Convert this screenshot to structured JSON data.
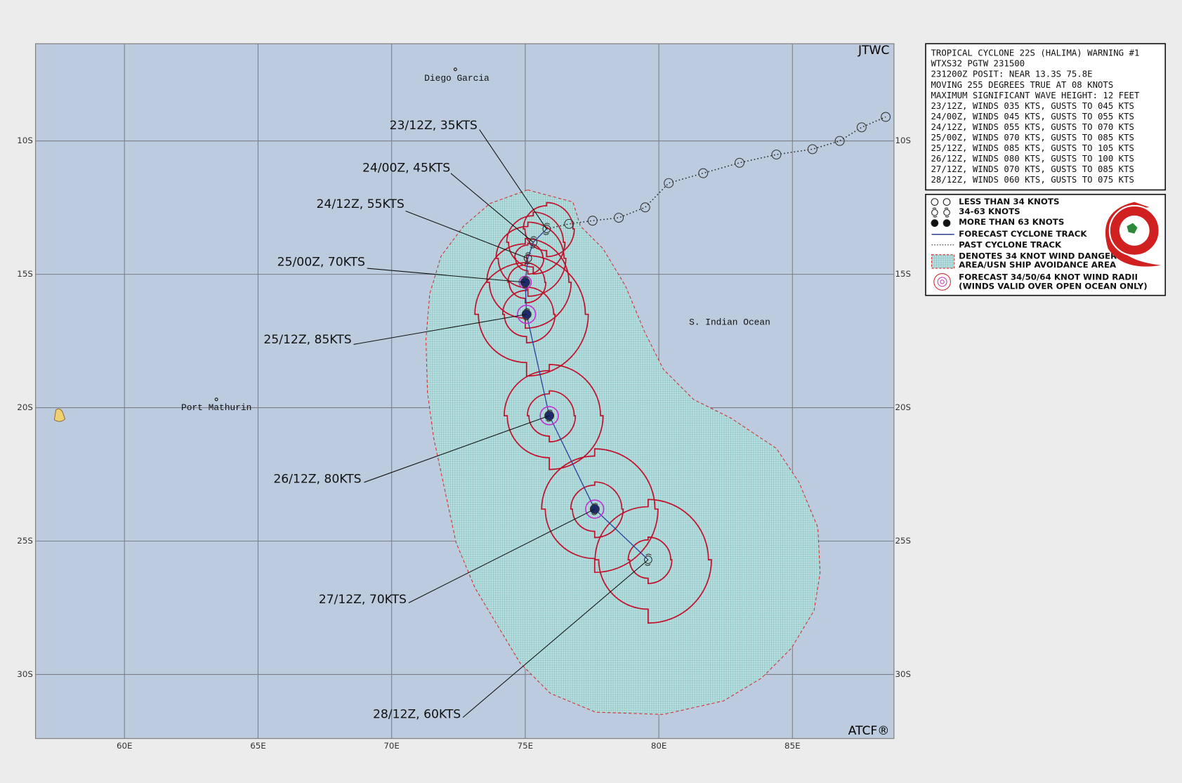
{
  "agency": "JTWC",
  "credit": "ATCF®",
  "places": [
    "Diego Garcia",
    "Port Mathurin",
    "S. Indian Ocean"
  ],
  "lon_ticks": [
    {
      "value": 60,
      "label": "60E"
    },
    {
      "value": 65,
      "label": "65E"
    },
    {
      "value": 70,
      "label": "70E"
    },
    {
      "value": 75,
      "label": "75E"
    },
    {
      "value": 80,
      "label": "80E"
    },
    {
      "value": 85,
      "label": "85E"
    }
  ],
  "lat_ticks": [
    {
      "value": -10,
      "label": "10S"
    },
    {
      "value": -15,
      "label": "15S"
    },
    {
      "value": -20,
      "label": "20S"
    },
    {
      "value": -25,
      "label": "25S"
    },
    {
      "value": -30,
      "label": "30S"
    }
  ],
  "warning": [
    "TROPICAL CYCLONE 22S (HALIMA) WARNING #1",
    "WTXS32 PGTW 231500",
    "231200Z POSIT: NEAR 13.3S 75.8E",
    "MOVING 255 DEGREES TRUE AT 08 KNOTS",
    "MAXIMUM SIGNIFICANT WAVE HEIGHT: 12 FEET",
    "23/12Z, WINDS 035 KTS, GUSTS TO 045 KTS",
    "24/00Z, WINDS 045 KTS, GUSTS TO 055 KTS",
    "24/12Z, WINDS 055 KTS, GUSTS TO 070 KTS",
    "25/00Z, WINDS 070 KTS, GUSTS TO 085 KTS",
    "25/12Z, WINDS 085 KTS, GUSTS TO 105 KTS",
    "26/12Z, WINDS 080 KTS, GUSTS TO 100 KTS",
    "27/12Z, WINDS 070 KTS, GUSTS TO 085 KTS",
    "28/12Z, WINDS 060 KTS, GUSTS TO 075 KTS"
  ],
  "legend": [
    [
      "LESS THAN 34 KNOTS"
    ],
    [
      "34-63 KNOTS"
    ],
    [
      "MORE THAN 63 KNOTS"
    ],
    [
      "FORECAST CYCLONE TRACK"
    ],
    [
      "PAST CYCLONE TRACK"
    ],
    [
      "DENOTES 34 KNOT WIND DANGER",
      "AREA/USN SHIP AVOIDANCE AREA"
    ],
    [
      "FORECAST 34/50/64 KNOT WIND RADII",
      "(WINDS VALID OVER OPEN OCEAN ONLY)"
    ]
  ],
  "forecast_points": [
    {
      "label": "23/12Z, 35KTS",
      "intensity": 35,
      "lon": 75.8,
      "lat": -13.3
    },
    {
      "label": "24/00Z, 45KTS",
      "intensity": 45,
      "lon": 75.3,
      "lat": -13.8
    },
    {
      "label": "24/12Z, 55KTS",
      "intensity": 55,
      "lon": 75.1,
      "lat": -14.4
    },
    {
      "label": "25/00Z, 70KTS",
      "intensity": 70,
      "lon": 75.0,
      "lat": -15.3
    },
    {
      "label": "25/12Z, 85KTS",
      "intensity": 85,
      "lon": 75.05,
      "lat": -16.5
    },
    {
      "label": "26/12Z, 80KTS",
      "intensity": 80,
      "lon": 75.9,
      "lat": -20.3
    },
    {
      "label": "27/12Z, 70KTS",
      "intensity": 70,
      "lon": 77.6,
      "lat": -23.8
    },
    {
      "label": "28/12Z, 60KTS",
      "intensity": 60,
      "lon": 79.6,
      "lat": -25.7
    }
  ],
  "past_track": [
    {
      "lon": 76.64,
      "lat": -13.11
    },
    {
      "lon": 77.52,
      "lat": -12.99
    },
    {
      "lon": 78.5,
      "lat": -12.88
    },
    {
      "lon": 79.49,
      "lat": -12.49
    },
    {
      "lon": 80.37,
      "lat": -11.58
    },
    {
      "lon": 81.66,
      "lat": -11.21
    },
    {
      "lon": 83.02,
      "lat": -10.82
    },
    {
      "lon": 84.4,
      "lat": -10.51
    },
    {
      "lon": 85.75,
      "lat": -10.31
    },
    {
      "lon": 86.77,
      "lat": -10.0
    },
    {
      "lon": 87.59,
      "lat": -9.49
    },
    {
      "lon": 88.49,
      "lat": -9.1
    }
  ]
}
